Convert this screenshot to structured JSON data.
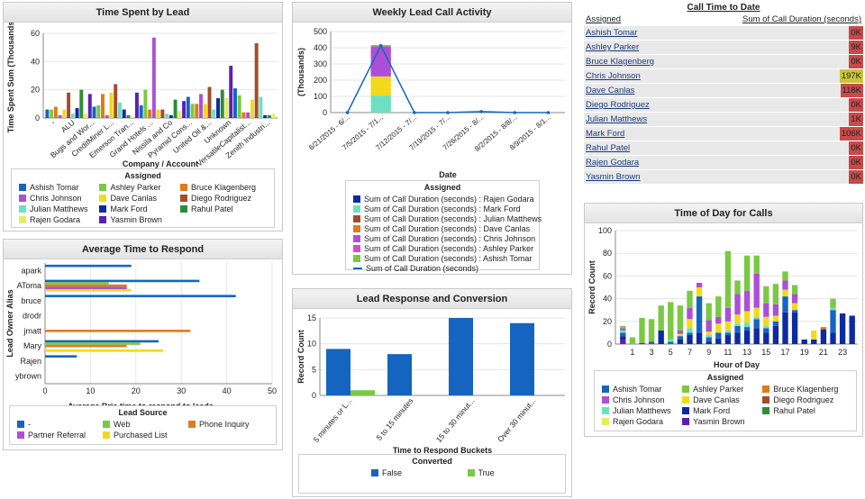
{
  "panels": {
    "time_spent": {
      "title": "Time Spent by Lead",
      "legend_title": "Assigned",
      "legend": [
        {
          "name": "Ashish Tomar",
          "color": "#1565c0"
        },
        {
          "name": "Ashley Parker",
          "color": "#7ac943"
        },
        {
          "name": "Bruce Klagenberg",
          "color": "#e07b1a"
        },
        {
          "name": "Chris Johnson",
          "color": "#ad4fd6"
        },
        {
          "name": "Dave Canlas",
          "color": "#f2d91c"
        },
        {
          "name": "Diego Rodriguez",
          "color": "#a14d2b"
        },
        {
          "name": "Julian Matthews",
          "color": "#6de0c3"
        },
        {
          "name": "Mark Ford",
          "color": "#0d2aa0"
        },
        {
          "name": "Rahul Patel",
          "color": "#2e8b3a"
        },
        {
          "name": "Rajen Godara",
          "color": "#e4ee5d"
        },
        {
          "name": "Yasmin Brown",
          "color": "#5c1fb6"
        }
      ]
    },
    "weekly": {
      "title": "Weekly Lead Call Activity",
      "legend_title": "Assigned",
      "legend": [
        {
          "name": "Sum of Call Duration (seconds) : Rajen Godara",
          "color": "#0d2aa0",
          "kind": "box"
        },
        {
          "name": "Sum of Call Duration (seconds) : Mark Ford",
          "color": "#6de0c3",
          "kind": "box"
        },
        {
          "name": "Sum of Call Duration (seconds) : Julian Matthews",
          "color": "#a14d2b",
          "kind": "box"
        },
        {
          "name": "Sum of Call Duration (seconds) : Dave Canlas",
          "color": "#e07b1a",
          "kind": "box"
        },
        {
          "name": "Sum of Call Duration (seconds) : Chris Johnson",
          "color": "#ad4fd6",
          "kind": "box"
        },
        {
          "name": "Sum of Call Duration (seconds) : Ashley Parker",
          "color": "#d04fc8",
          "kind": "box"
        },
        {
          "name": "Sum of Call Duration (seconds) : Ashish Tomar",
          "color": "#7ac943",
          "kind": "box"
        },
        {
          "name": "Sum of Call Duration (seconds)",
          "color": "#1565c0",
          "kind": "line"
        }
      ]
    },
    "call_time": {
      "title": "Call Time to Date",
      "col_assigned": "Assigned",
      "col_sum": "Sum of Call Duration (seconds)",
      "rows": [
        {
          "name": "Ashish Tomar",
          "value": "0K",
          "color": "#c84a4a"
        },
        {
          "name": "Ashley Parker",
          "value": "9K",
          "color": "#c84a4a"
        },
        {
          "name": "Bruce Klagenberg",
          "value": "0K",
          "color": "#c84a4a"
        },
        {
          "name": "Chris Johnson",
          "value": "197K",
          "color": "#c9c43a"
        },
        {
          "name": "Dave Canlas",
          "value": "118K",
          "color": "#c84a4a"
        },
        {
          "name": "Diego Rodriguez",
          "value": "0K",
          "color": "#c84a4a"
        },
        {
          "name": "Julian Matthews",
          "value": "1K",
          "color": "#c84a4a"
        },
        {
          "name": "Mark Ford",
          "value": "106K",
          "color": "#c84a4a"
        },
        {
          "name": "Rahul Patel",
          "value": "0K",
          "color": "#c84a4a"
        },
        {
          "name": "Rajen Godara",
          "value": "0K",
          "color": "#c84a4a"
        },
        {
          "name": "Yasmin Brown",
          "value": "0K",
          "color": "#c84a4a"
        }
      ]
    },
    "avg_time": {
      "title": "Average Time to Respond",
      "legend_title": "Lead Source",
      "legend": [
        {
          "name": "-",
          "color": "#1565c0"
        },
        {
          "name": "Web",
          "color": "#7ac943"
        },
        {
          "name": "Phone Inquiry",
          "color": "#e07b1a"
        },
        {
          "name": "Partner Referral",
          "color": "#ad4fd6"
        },
        {
          "name": "Purchased List",
          "color": "#f2d91c"
        }
      ]
    },
    "lead_resp": {
      "title": "Lead Response and Conversion",
      "legend_title": "Converted",
      "legend": [
        {
          "name": "False",
          "color": "#1565c0"
        },
        {
          "name": "True",
          "color": "#7ac943"
        }
      ]
    },
    "tod": {
      "title": "Time of Day for Calls",
      "legend_title": "Assigned",
      "legend": [
        {
          "name": "Ashish Tomar",
          "color": "#1565c0"
        },
        {
          "name": "Ashley Parker",
          "color": "#7ac943"
        },
        {
          "name": "Bruce Klagenberg",
          "color": "#e07b1a"
        },
        {
          "name": "Chris Johnson",
          "color": "#ad4fd6"
        },
        {
          "name": "Dave Canlas",
          "color": "#f2d91c"
        },
        {
          "name": "Diego Rodriguez",
          "color": "#a14d2b"
        },
        {
          "name": "Julian Matthews",
          "color": "#6de0c3"
        },
        {
          "name": "Mark Ford",
          "color": "#0d2aa0"
        },
        {
          "name": "Rahul Patel",
          "color": "#2e8b3a"
        },
        {
          "name": "Rajen Godara",
          "color": "#e4ee5d"
        },
        {
          "name": "Yasmin Brown",
          "color": "#5c1fb6"
        }
      ]
    }
  },
  "chart_data": [
    {
      "id": "time_spent",
      "type": "bar",
      "title": "Time Spent by Lead",
      "xlabel": "Company / Account",
      "ylabel": "Time Spent Sum (Thousands)",
      "ylim": [
        0,
        60
      ],
      "yticks": [
        0,
        20,
        40,
        60
      ],
      "xticklabels": [
        "-",
        "ALU",
        "Bugs and Wor...",
        "CreditMiner L...",
        "Emerson Tran...",
        "Grand Hotels ...",
        "Nissila and Co",
        "Pyramid Cons...",
        "United Oil &...",
        "Unknown",
        "VersatileCapitalist...",
        "Zenith Industri..."
      ],
      "bars": [
        6,
        6,
        8,
        2,
        6,
        18,
        3,
        7,
        20,
        3,
        17,
        8,
        9,
        17,
        2,
        18,
        24,
        11,
        6,
        2,
        1,
        18,
        9,
        20,
        6,
        57,
        6,
        6,
        3,
        2,
        13,
        5,
        12,
        15,
        10,
        10,
        17,
        10,
        22,
        6,
        14,
        20,
        14,
        37,
        21,
        16,
        4,
        4,
        13,
        53,
        15,
        2,
        2,
        3
      ]
    },
    {
      "id": "weekly",
      "type": "bar",
      "title": "Weekly Lead Call Activity",
      "xlabel": "Date",
      "ylabel": "(Thousands)",
      "ylim": [
        0,
        500
      ],
      "yticks": [
        0,
        100,
        200,
        300,
        400,
        500
      ],
      "categories": [
        "6/21/2015 - 6/...",
        "7/5/2015 - 7/1...",
        "7/12/2015 - 7/...",
        "7/19/2015 - 7/...",
        "7/26/2015 - 8/...",
        "8/2/2015 - 8/8/...",
        "8/9/2015 - 8/1..."
      ],
      "series": [
        {
          "name": "Sum of Call Duration (seconds) : Mark Ford",
          "values": [
            0,
            105,
            0,
            0,
            0,
            0,
            0
          ]
        },
        {
          "name": "Sum of Call Duration (seconds) : Dave Canlas",
          "values": [
            0,
            118,
            0,
            0,
            0,
            0,
            0
          ]
        },
        {
          "name": "Sum of Call Duration (seconds) : Chris Johnson",
          "values": [
            0,
            185,
            0,
            0,
            0,
            0,
            0
          ]
        },
        {
          "name": "Sum of Call Duration (seconds) : Ashley Parker",
          "values": [
            0,
            9,
            0,
            0,
            0,
            0,
            0
          ]
        }
      ],
      "line": {
        "name": "Sum of Call Duration (seconds)",
        "values": [
          0,
          413,
          0,
          0,
          6,
          0,
          0
        ]
      }
    },
    {
      "id": "avg_time",
      "type": "bar",
      "orientation": "horizontal",
      "title": "Average Time to Respond",
      "xlabel": "Average Bria time to respond to leads",
      "ylabel": "Lead Owner Alias",
      "xlim": [
        0,
        50
      ],
      "xticks": [
        0,
        10,
        20,
        30,
        40,
        50
      ],
      "categories": [
        "apark",
        "AToma",
        "bruce",
        "drodr",
        "jmatt",
        "Mary",
        "Rajen",
        "ybrown"
      ],
      "series": [
        {
          "name": "-",
          "values": [
            19,
            34,
            42,
            0,
            0,
            25,
            7,
            0
          ]
        },
        {
          "name": "Web",
          "values": [
            0,
            14,
            0,
            0,
            0,
            21,
            0,
            0
          ]
        },
        {
          "name": "Phone Inquiry",
          "values": [
            0,
            18,
            0,
            0,
            32,
            18,
            0,
            0
          ]
        },
        {
          "name": "Partner Referral",
          "values": [
            0,
            18,
            0,
            0,
            0,
            0,
            0,
            0
          ]
        },
        {
          "name": "Purchased List",
          "values": [
            0,
            19,
            0,
            0,
            0,
            26,
            0,
            0
          ]
        }
      ]
    },
    {
      "id": "lead_resp",
      "type": "bar",
      "title": "Lead Response and Conversion",
      "xlabel": "Time to Respond Buckets",
      "ylabel": "Record Count",
      "ylim": [
        0,
        15
      ],
      "yticks": [
        0,
        5,
        10,
        15
      ],
      "categories": [
        "5 minutes or L...",
        "5 to 15 minutes",
        "15 to 30 minut...",
        "Over 30 minut..."
      ],
      "series": [
        {
          "name": "False",
          "values": [
            9,
            8,
            15,
            14
          ]
        },
        {
          "name": "True",
          "values": [
            1,
            0,
            0,
            0
          ]
        }
      ]
    },
    {
      "id": "tod",
      "type": "bar",
      "stacked": true,
      "title": "Time of Day for Calls",
      "xlabel": "Hour of Day",
      "ylabel": "Record Count",
      "ylim": [
        0,
        100
      ],
      "yticks": [
        0,
        20,
        40,
        60,
        80,
        100
      ],
      "xticklabels": [
        "1",
        "3",
        "5",
        "7",
        "9",
        "11",
        "13",
        "15",
        "17",
        "19",
        "21",
        "23"
      ],
      "series": [
        {
          "name": "Yasmin Brown",
          "values": [
            4,
            0,
            1,
            0,
            0,
            0,
            0,
            0,
            0,
            0,
            0,
            0,
            0,
            0,
            0,
            0,
            0,
            0,
            0,
            0,
            0,
            0,
            0,
            0,
            0
          ]
        },
        {
          "name": "Mark Ford",
          "values": [
            3,
            0,
            0,
            0,
            12,
            0,
            4,
            8,
            10,
            2,
            5,
            8,
            10,
            12,
            14,
            10,
            16,
            28,
            28,
            4,
            4,
            13,
            10,
            27,
            25
          ]
        },
        {
          "name": "Ashish Tomar",
          "values": [
            3,
            0,
            0,
            2,
            0,
            2,
            3,
            2,
            32,
            4,
            5,
            2,
            6,
            3,
            8,
            4,
            4,
            14,
            2,
            0,
            0,
            0,
            20,
            0,
            0
          ]
        },
        {
          "name": "Julian Matthews",
          "values": [
            2,
            0,
            0,
            0,
            0,
            2,
            0,
            4,
            0,
            2,
            0,
            2,
            2,
            4,
            2,
            2,
            0,
            0,
            0,
            0,
            0,
            0,
            2,
            0,
            0
          ]
        },
        {
          "name": "Dave Canlas",
          "values": [
            0,
            0,
            0,
            0,
            0,
            0,
            2,
            8,
            8,
            3,
            8,
            8,
            8,
            10,
            8,
            8,
            5,
            6,
            6,
            0,
            8,
            0,
            0,
            0,
            0
          ]
        },
        {
          "name": "Chris Johnson",
          "values": [
            2,
            0,
            0,
            0,
            0,
            0,
            3,
            10,
            4,
            10,
            6,
            12,
            18,
            18,
            30,
            12,
            10,
            8,
            8,
            0,
            0,
            0,
            0,
            0,
            0
          ]
        },
        {
          "name": "Ashley Parker",
          "values": [
            2,
            6,
            22,
            20,
            22,
            33,
            22,
            15,
            0,
            15,
            18,
            50,
            12,
            31,
            16,
            15,
            18,
            8,
            8,
            0,
            0,
            0,
            8,
            0,
            0
          ]
        },
        {
          "name": "Bruce Klagenberg",
          "values": [
            0,
            0,
            0,
            0,
            0,
            0,
            0,
            0,
            0,
            0,
            0,
            0,
            0,
            0,
            0,
            0,
            0,
            0,
            0,
            0,
            0,
            2,
            0,
            0,
            0
          ]
        }
      ]
    }
  ]
}
